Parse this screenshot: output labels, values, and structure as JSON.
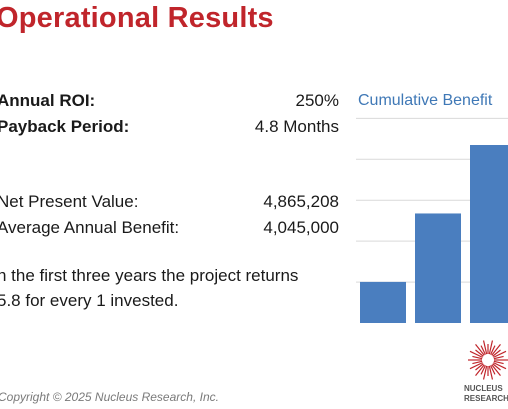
{
  "title": "Operational Results",
  "metrics": {
    "roi_label": "Annual ROI:",
    "roi_value": "250%",
    "payback_label": "Payback Period:",
    "payback_value": "4.8 Months",
    "npv_label": "Net Present Value:",
    "npv_value": "4,865,208",
    "aab_label": "Average Annual Benefit:",
    "aab_value": "4,045,000"
  },
  "statement": {
    "line1": "n the first three years the project returns",
    "line2": "5.8 for every 1 invested."
  },
  "chart_data": {
    "type": "bar",
    "title": "Cumulative Benefit",
    "categories": [
      "",
      "",
      ""
    ],
    "values": [
      1.2,
      3.2,
      5.2
    ],
    "ylim": [
      0,
      5.2
    ],
    "grid": true,
    "bar_color": "#4a7ebf",
    "grid_color": "#d9d9d9"
  },
  "footer": "Copyright © 2025 Nucleus Research, Inc.",
  "logo": {
    "line1": "NUCLEUS",
    "line2": "RESEARCH",
    "color": "#c0252b"
  }
}
